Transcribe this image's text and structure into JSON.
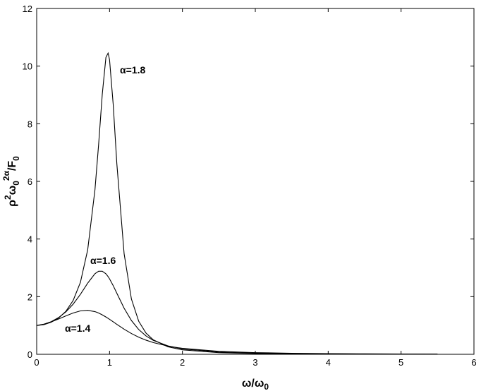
{
  "chart_data": {
    "type": "line",
    "xlabel": [
      "ω/ω",
      "0"
    ],
    "ylabel": [
      "ρ",
      "2",
      "ω",
      "0",
      "2α",
      "/F",
      "0"
    ],
    "x": [
      0,
      0.1,
      0.2,
      0.3,
      0.4,
      0.5,
      0.6,
      0.7,
      0.8,
      0.85,
      0.9,
      0.95,
      0.98,
      1.0,
      1.05,
      1.1,
      1.2,
      1.3,
      1.4,
      1.5,
      1.6,
      1.8,
      2.0,
      2.5,
      3,
      3.5,
      4,
      4.5,
      5,
      5.5
    ],
    "series": [
      {
        "name": "α=1.8",
        "color": "#000000",
        "values": [
          1,
          1.031,
          1.113,
          1.257,
          1.49,
          1.865,
          2.496,
          3.625,
          5.718,
          7.28,
          9.02,
          10.3,
          10.45,
          10.22,
          8.67,
          6.61,
          3.487,
          1.918,
          1.147,
          0.736,
          0.501,
          0.262,
          0.154,
          0.055,
          0.0253,
          0.0136,
          0.008,
          0.0051,
          0.0034,
          0.0024
        ]
      },
      {
        "name": "α=1.6",
        "color": "#000000",
        "values": [
          1,
          1.042,
          1.133,
          1.273,
          1.471,
          1.739,
          2.081,
          2.469,
          2.798,
          2.882,
          2.883,
          2.793,
          2.696,
          2.618,
          2.383,
          2.118,
          1.597,
          1.172,
          0.86,
          0.639,
          0.484,
          0.293,
          0.189,
          0.0784,
          0.0396,
          0.0227,
          0.0142,
          0.0094,
          0.0066,
          0.0048
        ]
      },
      {
        "name": "α=1.4",
        "color": "#000000",
        "values": [
          1,
          1.047,
          1.127,
          1.225,
          1.332,
          1.432,
          1.506,
          1.527,
          1.481,
          1.433,
          1.369,
          1.295,
          1.247,
          1.213,
          1.127,
          1.039,
          0.871,
          0.721,
          0.594,
          0.491,
          0.407,
          0.285,
          0.206,
          0.102,
          0.0581,
          0.0362,
          0.0242,
          0.017,
          0.0124,
          0.0094
        ]
      }
    ],
    "xlim": [
      0,
      6
    ],
    "xticks": [
      0,
      1,
      2,
      3,
      4,
      5,
      6
    ],
    "ylim": [
      0,
      12
    ],
    "yticks": [
      0,
      2,
      4,
      6,
      8,
      10,
      12
    ]
  }
}
